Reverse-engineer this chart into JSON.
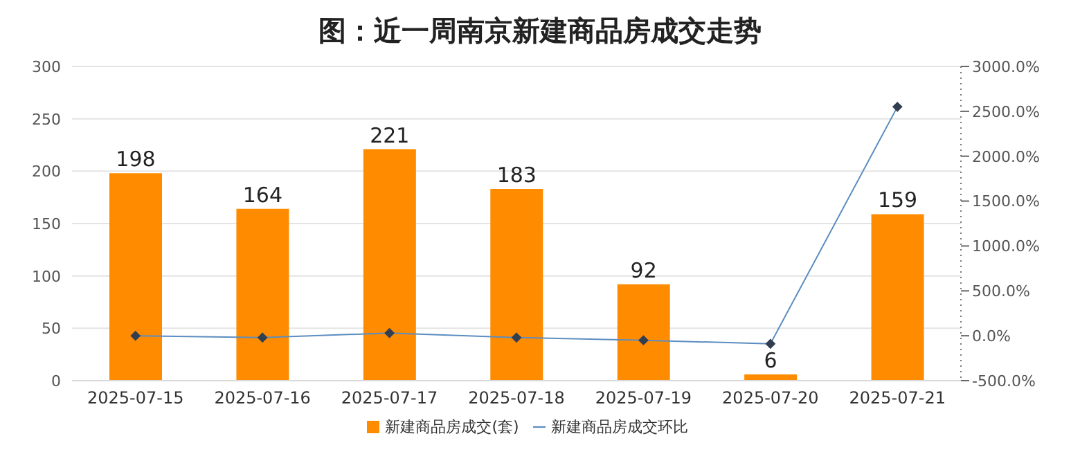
{
  "chart_data": {
    "type": "bar",
    "title": "图：近一周南京新建商品房成交走势",
    "categories": [
      "2025-07-15",
      "2025-07-16",
      "2025-07-17",
      "2025-07-18",
      "2025-07-19",
      "2025-07-20",
      "2025-07-21"
    ],
    "series": [
      {
        "name": "新建商品房成交(套)",
        "color": "#ff8c00",
        "values": [
          198,
          164,
          221,
          183,
          92,
          6,
          159
        ],
        "data_labels": true
      },
      {
        "name": "新建商品房成交环比",
        "type": "line",
        "axis": "y2",
        "color": "#5b8dc0",
        "marker": "diamond",
        "values": [
          0,
          -20,
          30,
          -20,
          -50,
          -90,
          2550
        ]
      }
    ],
    "ylim": [
      0,
      300
    ],
    "yticks": [
      0,
      50,
      100,
      150,
      200,
      250,
      300
    ],
    "y2lim": [
      -500,
      3000
    ],
    "y2ticks": [
      {
        "value": -500,
        "label": "-500.0%"
      },
      {
        "value": 0,
        "label": "0.0%"
      },
      {
        "value": 500,
        "label": "500.0%"
      },
      {
        "value": 1000,
        "label": "1000.0%"
      },
      {
        "value": 1500,
        "label": "1500.0%"
      },
      {
        "value": 2000,
        "label": "2000.0%"
      },
      {
        "value": 2500,
        "label": "2500.0%"
      },
      {
        "value": 3000,
        "label": "3000.0%"
      }
    ],
    "grid": "y",
    "legend": "bottom"
  }
}
